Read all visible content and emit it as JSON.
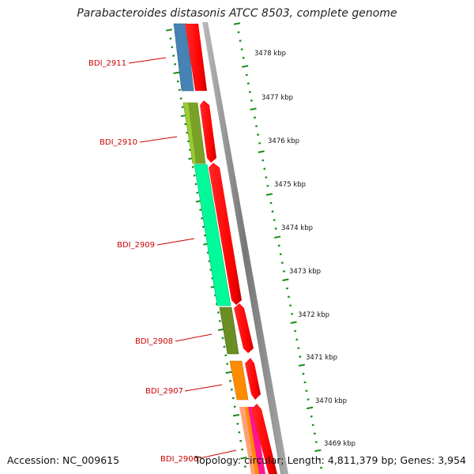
{
  "title": "Parabacteroides distasonis ATCC 8503, complete genome",
  "accession": "Accession: NC_009615",
  "topology": "Topology: circular; Length: 4,811,379 bp; Genes: 3,954",
  "scale_labels": [
    "3478 kbp",
    "3477 kbp",
    "3476 kbp",
    "3475 kbp",
    "3474 kbp",
    "3473 kbp",
    "3472 kbp",
    "3471 kbp",
    "3470 kbp",
    "3469 kbp"
  ],
  "genes": [
    {
      "label": "BDI_2911",
      "color": "#4682b4"
    },
    {
      "label": "BDI_2910",
      "color": "#9acd32"
    },
    {
      "label": "BDI_2909",
      "color": "#00fa9a"
    },
    {
      "label": "BDI_2908",
      "color": "#6b8e23"
    },
    {
      "label": "BDI_2907",
      "color": "#ff8c00"
    },
    {
      "label": "BDI_2906",
      "color": "#ff69b4"
    }
  ],
  "colors": {
    "strand_arrow": "#ff0000",
    "backbone": "#888888",
    "tick": "#1a8a1a",
    "gene_label": "#cc0000"
  }
}
